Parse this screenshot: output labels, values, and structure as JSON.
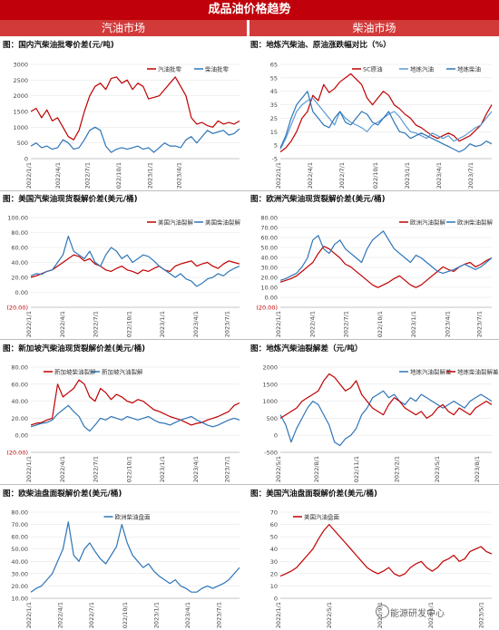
{
  "header": {
    "title": "成品油价格趋势",
    "left_column": "汽油市场",
    "right_column": "柴油市场"
  },
  "watermark": "能源研发中心",
  "colors": {
    "red": "#c00000",
    "blue": "#2e75b6",
    "banner": "#c0000a"
  },
  "chart_data": [
    {
      "id": "c1",
      "type": "line",
      "title": "图：国内汽柴油批零价差(元/吨)",
      "ylim": [
        0,
        3000
      ],
      "yticks": [
        "0",
        "500",
        "1000",
        "1500",
        "2000",
        "2500",
        "3000"
      ],
      "xticks": [
        "2022/1/1",
        "2022/4/1",
        "2022/7/1",
        "2022/10/1",
        "2023/1/1",
        "2023/4/1"
      ],
      "xtick_pos": [
        0,
        0.14,
        0.28,
        0.43,
        0.58,
        0.72
      ],
      "legend": "top-right",
      "series": [
        {
          "name": "汽油批零",
          "color": "red",
          "values": [
            1500,
            1600,
            1300,
            1550,
            1200,
            1300,
            1000,
            700,
            600,
            900,
            1500,
            2000,
            2300,
            2400,
            2200,
            2550,
            2600,
            2400,
            2500,
            2200,
            2400,
            2300,
            1900,
            1950,
            2000,
            2200,
            2400,
            2600,
            2300,
            2000,
            1300,
            1100,
            1150,
            1050,
            1000,
            1200,
            1100,
            1150,
            1100,
            1200
          ]
        },
        {
          "name": "柴油批零",
          "color": "blue",
          "values": [
            400,
            500,
            350,
            400,
            300,
            350,
            600,
            500,
            300,
            350,
            600,
            900,
            1000,
            900,
            400,
            200,
            300,
            350,
            300,
            350,
            400,
            300,
            350,
            200,
            350,
            500,
            400,
            400,
            350,
            600,
            700,
            500,
            700,
            900,
            800,
            850,
            900,
            750,
            800,
            950
          ]
        }
      ]
    },
    {
      "id": "c2",
      "type": "line",
      "title": "图：地炼汽柴油、原油涨跌幅对比（%）",
      "ylim": [
        -5,
        65
      ],
      "yticks": [
        "-5",
        "5",
        "15",
        "25",
        "35",
        "45",
        "55",
        "65"
      ],
      "xticks": [
        "2022/1/1",
        "2022/4/1",
        "2022/7/1",
        "2022/10/1",
        "2023/1/1",
        "2023/4/1",
        "2023/7/1"
      ],
      "xtick_pos": [
        0,
        0.15,
        0.3,
        0.46,
        0.61,
        0.76,
        0.91
      ],
      "legend": "top-right",
      "series": [
        {
          "name": "SC原油",
          "color": "red",
          "values": [
            0,
            3,
            8,
            15,
            25,
            30,
            42,
            38,
            50,
            44,
            47,
            52,
            55,
            58,
            54,
            50,
            40,
            35,
            40,
            45,
            42,
            35,
            32,
            28,
            25,
            20,
            18,
            15,
            12,
            10,
            12,
            14,
            12,
            8,
            10,
            12,
            16,
            20,
            28,
            35
          ]
        },
        {
          "name": "地炼汽油",
          "color": "#5b9bd5",
          "values": [
            2,
            10,
            20,
            30,
            35,
            38,
            40,
            35,
            30,
            25,
            20,
            30,
            25,
            22,
            20,
            18,
            15,
            20,
            22,
            25,
            28,
            30,
            26,
            20,
            15,
            14,
            12,
            10,
            14,
            12,
            10,
            12,
            8,
            10,
            12,
            15,
            18,
            20,
            25,
            30
          ]
        },
        {
          "name": "地炼柴油",
          "color": "blue",
          "values": [
            3,
            12,
            25,
            35,
            40,
            45,
            30,
            25,
            20,
            18,
            25,
            30,
            22,
            20,
            25,
            30,
            28,
            22,
            20,
            25,
            30,
            22,
            15,
            14,
            10,
            12,
            14,
            12,
            10,
            8,
            6,
            4,
            2,
            0,
            2,
            6,
            4,
            5,
            8,
            6
          ]
        }
      ]
    },
    {
      "id": "c3",
      "type": "line",
      "title": "图：美国汽柴油现货裂解价差(美元/桶)",
      "ylim": [
        -20,
        100
      ],
      "yticks": [
        "(20.00)",
        "0.00",
        "20.00",
        "40.00",
        "60.00",
        "80.00",
        "100.00"
      ],
      "xticks": [
        "2022/1/1",
        "2022/4/1",
        "2022/7/1",
        "2022/10/1",
        "2023/1/1",
        "2023/4/1",
        "2023/7/1"
      ],
      "xtick_pos": [
        0,
        0.16,
        0.32,
        0.48,
        0.64,
        0.8,
        0.95
      ],
      "legend": "top-right",
      "series": [
        {
          "name": "美国汽油裂解",
          "color": "red",
          "values": [
            20,
            22,
            25,
            28,
            30,
            35,
            40,
            45,
            50,
            48,
            42,
            45,
            38,
            35,
            30,
            28,
            32,
            35,
            30,
            28,
            25,
            30,
            28,
            32,
            35,
            30,
            28,
            35,
            38,
            40,
            42,
            35,
            38,
            40,
            35,
            32,
            38,
            42,
            40,
            38
          ]
        },
        {
          "name": "美国柴油裂解",
          "color": "blue",
          "values": [
            22,
            25,
            24,
            28,
            30,
            40,
            50,
            75,
            55,
            50,
            45,
            55,
            40,
            35,
            50,
            60,
            55,
            45,
            50,
            40,
            45,
            50,
            48,
            42,
            35,
            30,
            25,
            20,
            25,
            18,
            15,
            8,
            12,
            18,
            20,
            25,
            22,
            28,
            32,
            35
          ]
        }
      ]
    },
    {
      "id": "c4",
      "type": "line",
      "title": "图：欧洲汽柴油现货裂解价差(美元/桶)",
      "ylim": [
        -20,
        80
      ],
      "yticks": [
        "(20.00)",
        "0.00",
        "10.00",
        "20.00",
        "30.00",
        "40.00",
        "50.00",
        "60.00",
        "70.00",
        "80.00"
      ],
      "xticks": [
        "2022/1/1",
        "2022/4/1",
        "2022/7/1",
        "2022/10/1",
        "2023/1/1",
        "2023/4/1",
        "2023/7/1"
      ],
      "xtick_pos": [
        0,
        0.16,
        0.32,
        0.48,
        0.64,
        0.8,
        0.95
      ],
      "legend": "top-right",
      "series": [
        {
          "name": "欧洲汽油裂解",
          "color": "red",
          "values": [
            8,
            10,
            12,
            15,
            20,
            25,
            30,
            40,
            48,
            45,
            40,
            35,
            28,
            25,
            20,
            15,
            10,
            5,
            2,
            5,
            8,
            12,
            15,
            10,
            5,
            2,
            5,
            10,
            15,
            20,
            25,
            22,
            20,
            25,
            28,
            30,
            25,
            28,
            32,
            35
          ]
        },
        {
          "name": "欧洲柴油裂解",
          "color": "blue",
          "values": [
            10,
            12,
            15,
            18,
            25,
            35,
            55,
            60,
            45,
            40,
            50,
            55,
            45,
            40,
            35,
            30,
            45,
            55,
            60,
            65,
            55,
            45,
            40,
            35,
            30,
            38,
            35,
            30,
            25,
            20,
            18,
            20,
            22,
            25,
            28,
            25,
            22,
            25,
            30,
            35
          ]
        }
      ]
    },
    {
      "id": "c5",
      "type": "line",
      "title": "图：新加坡汽柴油现货裂解价差(美元/桶)",
      "ylim": [
        -20,
        80
      ],
      "yticks": [
        "(20.00)",
        "0.00",
        "20.00",
        "40.00",
        "60.00",
        "80.00"
      ],
      "xticks": [
        "2022/1/1",
        "2022/4/1",
        "2022/7/1",
        "2022/10/1",
        "2023/1/1",
        "2023/4/1",
        "2023/7/1"
      ],
      "xtick_pos": [
        0,
        0.16,
        0.32,
        0.48,
        0.64,
        0.8,
        0.95
      ],
      "legend": "top-left",
      "series": [
        {
          "name": "新加坡柴油裂解",
          "color": "red",
          "values": [
            12,
            14,
            15,
            18,
            20,
            60,
            45,
            50,
            55,
            65,
            60,
            45,
            40,
            55,
            50,
            42,
            48,
            45,
            40,
            38,
            42,
            40,
            35,
            30,
            28,
            25,
            22,
            20,
            18,
            15,
            12,
            14,
            15,
            18,
            20,
            22,
            25,
            28,
            35,
            38
          ]
        },
        {
          "name": "新加坡汽油裂解",
          "color": "blue",
          "values": [
            10,
            12,
            14,
            15,
            18,
            25,
            30,
            35,
            28,
            22,
            10,
            5,
            12,
            20,
            18,
            22,
            20,
            18,
            22,
            20,
            18,
            20,
            22,
            18,
            15,
            14,
            12,
            15,
            18,
            20,
            22,
            18,
            15,
            12,
            10,
            12,
            15,
            18,
            20,
            18
          ]
        }
      ]
    },
    {
      "id": "c6",
      "type": "line",
      "title": "图：地炼汽柴油裂解差（元/吨）",
      "ylim": [
        -500,
        2000
      ],
      "yticks": [
        "-500",
        "0",
        "500",
        "1000",
        "1500",
        "2000"
      ],
      "xticks": [
        "2022/5/1",
        "2022/8/1",
        "2022/11/1",
        "2023/2/1",
        "2023/5/1",
        "2023/8/1"
      ],
      "xtick_pos": [
        0,
        0.18,
        0.37,
        0.56,
        0.75,
        0.94
      ],
      "legend": "top-right",
      "series": [
        {
          "name": "地炼汽油裂解差",
          "color": "blue",
          "values": [
            600,
            300,
            -200,
            200,
            500,
            800,
            1000,
            900,
            600,
            300,
            -200,
            -300,
            -100,
            0,
            200,
            600,
            800,
            1100,
            1200,
            1300,
            1100,
            1200,
            1000,
            900,
            1100,
            1000,
            1200,
            1100,
            1000,
            900,
            800,
            900,
            1000,
            900,
            800,
            1000,
            1100,
            1200,
            1100,
            1000
          ]
        },
        {
          "name": "地炼柴油裂解差",
          "color": "red",
          "values": [
            500,
            600,
            700,
            800,
            1000,
            1100,
            1200,
            1300,
            1600,
            1800,
            1700,
            1500,
            1300,
            1400,
            1600,
            1200,
            1000,
            800,
            700,
            600,
            900,
            1100,
            1000,
            800,
            700,
            600,
            700,
            500,
            600,
            800,
            900,
            700,
            600,
            800,
            700,
            600,
            800,
            900,
            1000,
            900
          ]
        }
      ]
    },
    {
      "id": "c7",
      "type": "line",
      "title": "图：欧柴油盘面裂解价差(美元/桶)",
      "ylim": [
        10,
        80
      ],
      "yticks": [
        "10.00",
        "20.00",
        "30.00",
        "40.00",
        "50.00",
        "60.00",
        "70.00",
        "80.00"
      ],
      "xticks": [
        "2022/1/1",
        "2022/4/1",
        "2022/7/1",
        "2022/10/1",
        "2023/1/1",
        "2023/4/1",
        "2023/7/1"
      ],
      "xtick_pos": [
        0,
        0.15,
        0.3,
        0.46,
        0.61,
        0.76,
        0.91
      ],
      "legend": "top-center",
      "series": [
        {
          "name": "欧洲柴油盘面",
          "color": "blue",
          "values": [
            15,
            18,
            20,
            25,
            30,
            40,
            50,
            72,
            45,
            40,
            50,
            55,
            48,
            42,
            38,
            45,
            52,
            70,
            55,
            45,
            40,
            35,
            38,
            32,
            28,
            25,
            22,
            25,
            20,
            18,
            15,
            15,
            18,
            20,
            18,
            20,
            22,
            25,
            30,
            35
          ]
        }
      ]
    },
    {
      "id": "c8",
      "type": "line",
      "title": "图：美国汽油盘面裂解价差(美元/桶)",
      "ylim": [
        0,
        70
      ],
      "yticks": [
        "0",
        "10",
        "20",
        "30",
        "40",
        "50",
        "60",
        "70"
      ],
      "xticks": [
        "2022/1/1",
        "2022/5/1",
        "2022/9/1",
        "2023/1/1",
        "2023/5/1"
      ],
      "xtick_pos": [
        0,
        0.24,
        0.48,
        0.72,
        0.96
      ],
      "legend": "top-left",
      "series": [
        {
          "name": "美国汽油盘面",
          "color": "red",
          "values": [
            18,
            20,
            22,
            25,
            30,
            35,
            40,
            48,
            55,
            60,
            55,
            50,
            45,
            40,
            35,
            30,
            25,
            22,
            20,
            22,
            25,
            20,
            18,
            20,
            25,
            28,
            30,
            25,
            22,
            25,
            30,
            32,
            35,
            30,
            32,
            38,
            40,
            42,
            38,
            36
          ]
        }
      ]
    }
  ]
}
